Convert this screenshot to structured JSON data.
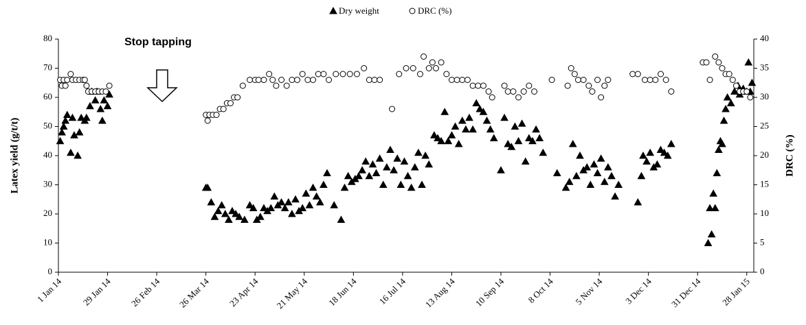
{
  "chart_data": {
    "type": "scatter",
    "annotation": "Stop tapping",
    "ylabel": "Latex yield (g/t/t)",
    "y2label": "DRC (%)",
    "xlim": [
      "2014-01-01",
      "2015-02-01"
    ],
    "xticks": [
      {
        "value": "2014-01-01",
        "label": "1 Jan 14"
      },
      {
        "value": "2014-01-29",
        "label": "29 Jan 14"
      },
      {
        "value": "2014-02-26",
        "label": "26 Feb 14"
      },
      {
        "value": "2014-03-26",
        "label": "26 Mar 14"
      },
      {
        "value": "2014-04-23",
        "label": "23 Apr 14"
      },
      {
        "value": "2014-05-21",
        "label": "21 May 14"
      },
      {
        "value": "2014-06-18",
        "label": "18 Jun 14"
      },
      {
        "value": "2014-07-16",
        "label": "16 Jul 14"
      },
      {
        "value": "2014-08-13",
        "label": "13 Aug 14"
      },
      {
        "value": "2014-09-10",
        "label": "10 Sep 14"
      },
      {
        "value": "2014-10-08",
        "label": "8 Oct 14"
      },
      {
        "value": "2014-11-05",
        "label": "5 Nov 14"
      },
      {
        "value": "2014-12-03",
        "label": "3 Dec 14"
      },
      {
        "value": "2014-12-31",
        "label": "31 Dec 14"
      },
      {
        "value": "2015-01-28",
        "label": "28 Jan 15"
      }
    ],
    "ylim": [
      0,
      80
    ],
    "yticks": [
      0,
      10,
      20,
      30,
      40,
      50,
      60,
      70,
      80
    ],
    "y2lim": [
      0,
      40
    ],
    "y2ticks": [
      0,
      5,
      10,
      15,
      20,
      25,
      30,
      35,
      40
    ],
    "legend": "top",
    "series": [
      {
        "name": "Dry weight",
        "color": "#000000",
        "marker": "triangle",
        "filled": true,
        "x": [
          "2014-01-02",
          "2014-01-03",
          "2014-01-04",
          "2014-01-05",
          "2014-01-06",
          "2014-01-08",
          "2014-01-09",
          "2014-01-10",
          "2014-01-12",
          "2014-01-13",
          "2014-01-14",
          "2014-01-16",
          "2014-01-17",
          "2014-01-19",
          "2014-01-20",
          "2014-01-22",
          "2014-01-23",
          "2014-01-25",
          "2014-01-26",
          "2014-01-27",
          "2014-01-29",
          "2014-01-30",
          "2014-03-26",
          "2014-03-27",
          "2014-03-29",
          "2014-03-31",
          "2014-04-02",
          "2014-04-04",
          "2014-04-06",
          "2014-04-08",
          "2014-04-10",
          "2014-04-12",
          "2014-04-14",
          "2014-04-17",
          "2014-04-20",
          "2014-04-22",
          "2014-04-24",
          "2014-04-26",
          "2014-04-28",
          "2014-04-30",
          "2014-05-02",
          "2014-05-04",
          "2014-05-06",
          "2014-05-08",
          "2014-05-10",
          "2014-05-12",
          "2014-05-14",
          "2014-05-16",
          "2014-05-18",
          "2014-05-20",
          "2014-05-22",
          "2014-05-24",
          "2014-05-26",
          "2014-05-28",
          "2014-05-30",
          "2014-06-01",
          "2014-06-03",
          "2014-06-07",
          "2014-06-11",
          "2014-06-13",
          "2014-06-15",
          "2014-06-17",
          "2014-06-19",
          "2014-06-21",
          "2014-06-23",
          "2014-06-25",
          "2014-06-27",
          "2014-06-29",
          "2014-07-01",
          "2014-07-03",
          "2014-07-05",
          "2014-07-07",
          "2014-07-09",
          "2014-07-11",
          "2014-07-13",
          "2014-07-15",
          "2014-07-17",
          "2014-07-19",
          "2014-07-21",
          "2014-07-23",
          "2014-07-25",
          "2014-07-27",
          "2014-07-29",
          "2014-07-31",
          "2014-08-03",
          "2014-08-05",
          "2014-08-07",
          "2014-08-09",
          "2014-08-11",
          "2014-08-13",
          "2014-08-15",
          "2014-08-17",
          "2014-08-19",
          "2014-08-21",
          "2014-08-23",
          "2014-08-25",
          "2014-08-27",
          "2014-08-29",
          "2014-08-31",
          "2014-09-02",
          "2014-09-04",
          "2014-09-06",
          "2014-09-10",
          "2014-09-12",
          "2014-09-14",
          "2014-09-16",
          "2014-09-18",
          "2014-09-20",
          "2014-09-22",
          "2014-09-24",
          "2014-09-26",
          "2014-09-28",
          "2014-09-30",
          "2014-10-02",
          "2014-10-04",
          "2014-10-12",
          "2014-10-17",
          "2014-10-19",
          "2014-10-21",
          "2014-10-23",
          "2014-10-25",
          "2014-10-27",
          "2014-10-29",
          "2014-10-31",
          "2014-11-02",
          "2014-11-04",
          "2014-11-06",
          "2014-11-08",
          "2014-11-10",
          "2014-11-12",
          "2014-11-14",
          "2014-11-16",
          "2014-11-27",
          "2014-11-29",
          "2014-11-30",
          "2014-12-02",
          "2014-12-04",
          "2014-12-06",
          "2014-12-08",
          "2014-12-10",
          "2014-12-12",
          "2014-12-14",
          "2014-12-16",
          "2015-01-06",
          "2015-01-07",
          "2015-01-08",
          "2015-01-09",
          "2015-01-10",
          "2015-01-11",
          "2015-01-12",
          "2015-01-13",
          "2015-01-14",
          "2015-01-15",
          "2015-01-16",
          "2015-01-17",
          "2015-01-19",
          "2015-01-21",
          "2015-01-23",
          "2015-01-24",
          "2015-01-26",
          "2015-01-28",
          "2015-01-29",
          "2015-01-30",
          "2015-01-31"
        ],
        "values": [
          45,
          48,
          50,
          52,
          54,
          41,
          53,
          47,
          40,
          48,
          53,
          52,
          53,
          57,
          62,
          59,
          62,
          56,
          52,
          59,
          57,
          61,
          29,
          29,
          24,
          19,
          21,
          23,
          20,
          18,
          21,
          20,
          19,
          18,
          23,
          22,
          18,
          19,
          22,
          21,
          22,
          26,
          23,
          24,
          22,
          24,
          20,
          25,
          21,
          22,
          27,
          23,
          29,
          26,
          24,
          30,
          34,
          23,
          18,
          29,
          33,
          31,
          32,
          33,
          35,
          38,
          33,
          37,
          34,
          39,
          30,
          36,
          42,
          35,
          39,
          30,
          38,
          33,
          29,
          36,
          41,
          30,
          40,
          37,
          47,
          46,
          45,
          55,
          45,
          47,
          50,
          44,
          52,
          49,
          53,
          49,
          58,
          56,
          55,
          52,
          49,
          46,
          35,
          53,
          44,
          43,
          50,
          45,
          51,
          38,
          46,
          45,
          49,
          46,
          41,
          34,
          29,
          31,
          44,
          33,
          40,
          35,
          36,
          30,
          37,
          34,
          39,
          31,
          36,
          33,
          26,
          30,
          24,
          33,
          40,
          38,
          41,
          36,
          37,
          42,
          41,
          40,
          44,
          10,
          22,
          13,
          27,
          22,
          34,
          42,
          45,
          44,
          52,
          56,
          60,
          58,
          62,
          64,
          61,
          63,
          62,
          72,
          62,
          65
        ]
      },
      {
        "name": "DRC (%)",
        "color": "#000000",
        "marker": "circle",
        "filled": false,
        "axis": "y2",
        "x": [
          "2014-01-02",
          "2014-01-03",
          "2014-01-04",
          "2014-01-05",
          "2014-01-06",
          "2014-01-08",
          "2014-01-09",
          "2014-01-11",
          "2014-01-13",
          "2014-01-15",
          "2014-01-16",
          "2014-01-17",
          "2014-01-18",
          "2014-01-20",
          "2014-01-22",
          "2014-01-24",
          "2014-01-26",
          "2014-01-28",
          "2014-01-30",
          "2014-03-26",
          "2014-03-27",
          "2014-03-28",
          "2014-03-30",
          "2014-04-01",
          "2014-04-03",
          "2014-04-05",
          "2014-04-07",
          "2014-04-09",
          "2014-04-11",
          "2014-04-13",
          "2014-04-16",
          "2014-04-20",
          "2014-04-23",
          "2014-04-25",
          "2014-04-28",
          "2014-05-01",
          "2014-05-03",
          "2014-05-05",
          "2014-05-08",
          "2014-05-11",
          "2014-05-14",
          "2014-05-17",
          "2014-05-20",
          "2014-05-23",
          "2014-05-26",
          "2014-05-29",
          "2014-06-01",
          "2014-06-04",
          "2014-06-08",
          "2014-06-12",
          "2014-06-16",
          "2014-06-20",
          "2014-06-24",
          "2014-06-27",
          "2014-06-30",
          "2014-07-03",
          "2014-07-10",
          "2014-07-14",
          "2014-07-18",
          "2014-07-22",
          "2014-07-26",
          "2014-07-28",
          "2014-07-31",
          "2014-08-02",
          "2014-08-04",
          "2014-08-07",
          "2014-08-10",
          "2014-08-13",
          "2014-08-16",
          "2014-08-19",
          "2014-08-22",
          "2014-08-25",
          "2014-08-28",
          "2014-08-31",
          "2014-09-03",
          "2014-09-05",
          "2014-09-12",
          "2014-09-14",
          "2014-09-17",
          "2014-09-20",
          "2014-09-23",
          "2014-09-26",
          "2014-09-29",
          "2014-10-09",
          "2014-10-18",
          "2014-10-20",
          "2014-10-22",
          "2014-10-24",
          "2014-10-27",
          "2014-10-30",
          "2014-11-01",
          "2014-11-04",
          "2014-11-06",
          "2014-11-08",
          "2014-11-10",
          "2014-11-24",
          "2014-11-27",
          "2014-12-01",
          "2014-12-04",
          "2014-12-07",
          "2014-12-10",
          "2014-12-13",
          "2014-12-16",
          "2015-01-03",
          "2015-01-05",
          "2015-01-07",
          "2015-01-10",
          "2015-01-12",
          "2015-01-14",
          "2015-01-16",
          "2015-01-18",
          "2015-01-20",
          "2015-01-22",
          "2015-01-24",
          "2015-01-26",
          "2015-01-28",
          "2015-01-30"
        ],
        "values": [
          33,
          32,
          33,
          32,
          33,
          34,
          33,
          33,
          33,
          33,
          33,
          32,
          31,
          31,
          31,
          31,
          31,
          31,
          32,
          27,
          26,
          27,
          27,
          27,
          28,
          28,
          29,
          29,
          30,
          30,
          32,
          33,
          33,
          33,
          33,
          34,
          33,
          32,
          33,
          32,
          33,
          33,
          34,
          33,
          33,
          34,
          34,
          33,
          34,
          34,
          34,
          34,
          35,
          33,
          33,
          33,
          28,
          34,
          35,
          35,
          34,
          37,
          35,
          36,
          35,
          36,
          34,
          33,
          33,
          33,
          33,
          32,
          32,
          32,
          31,
          30,
          32,
          31,
          31,
          30,
          31,
          32,
          31,
          33,
          32,
          35,
          34,
          33,
          33,
          32,
          31,
          33,
          30,
          32,
          33,
          34,
          34,
          33,
          33,
          33,
          34,
          33,
          31,
          36,
          36,
          33,
          37,
          36,
          35,
          34,
          34,
          33,
          32,
          31,
          31,
          31,
          30
        ]
      }
    ]
  }
}
